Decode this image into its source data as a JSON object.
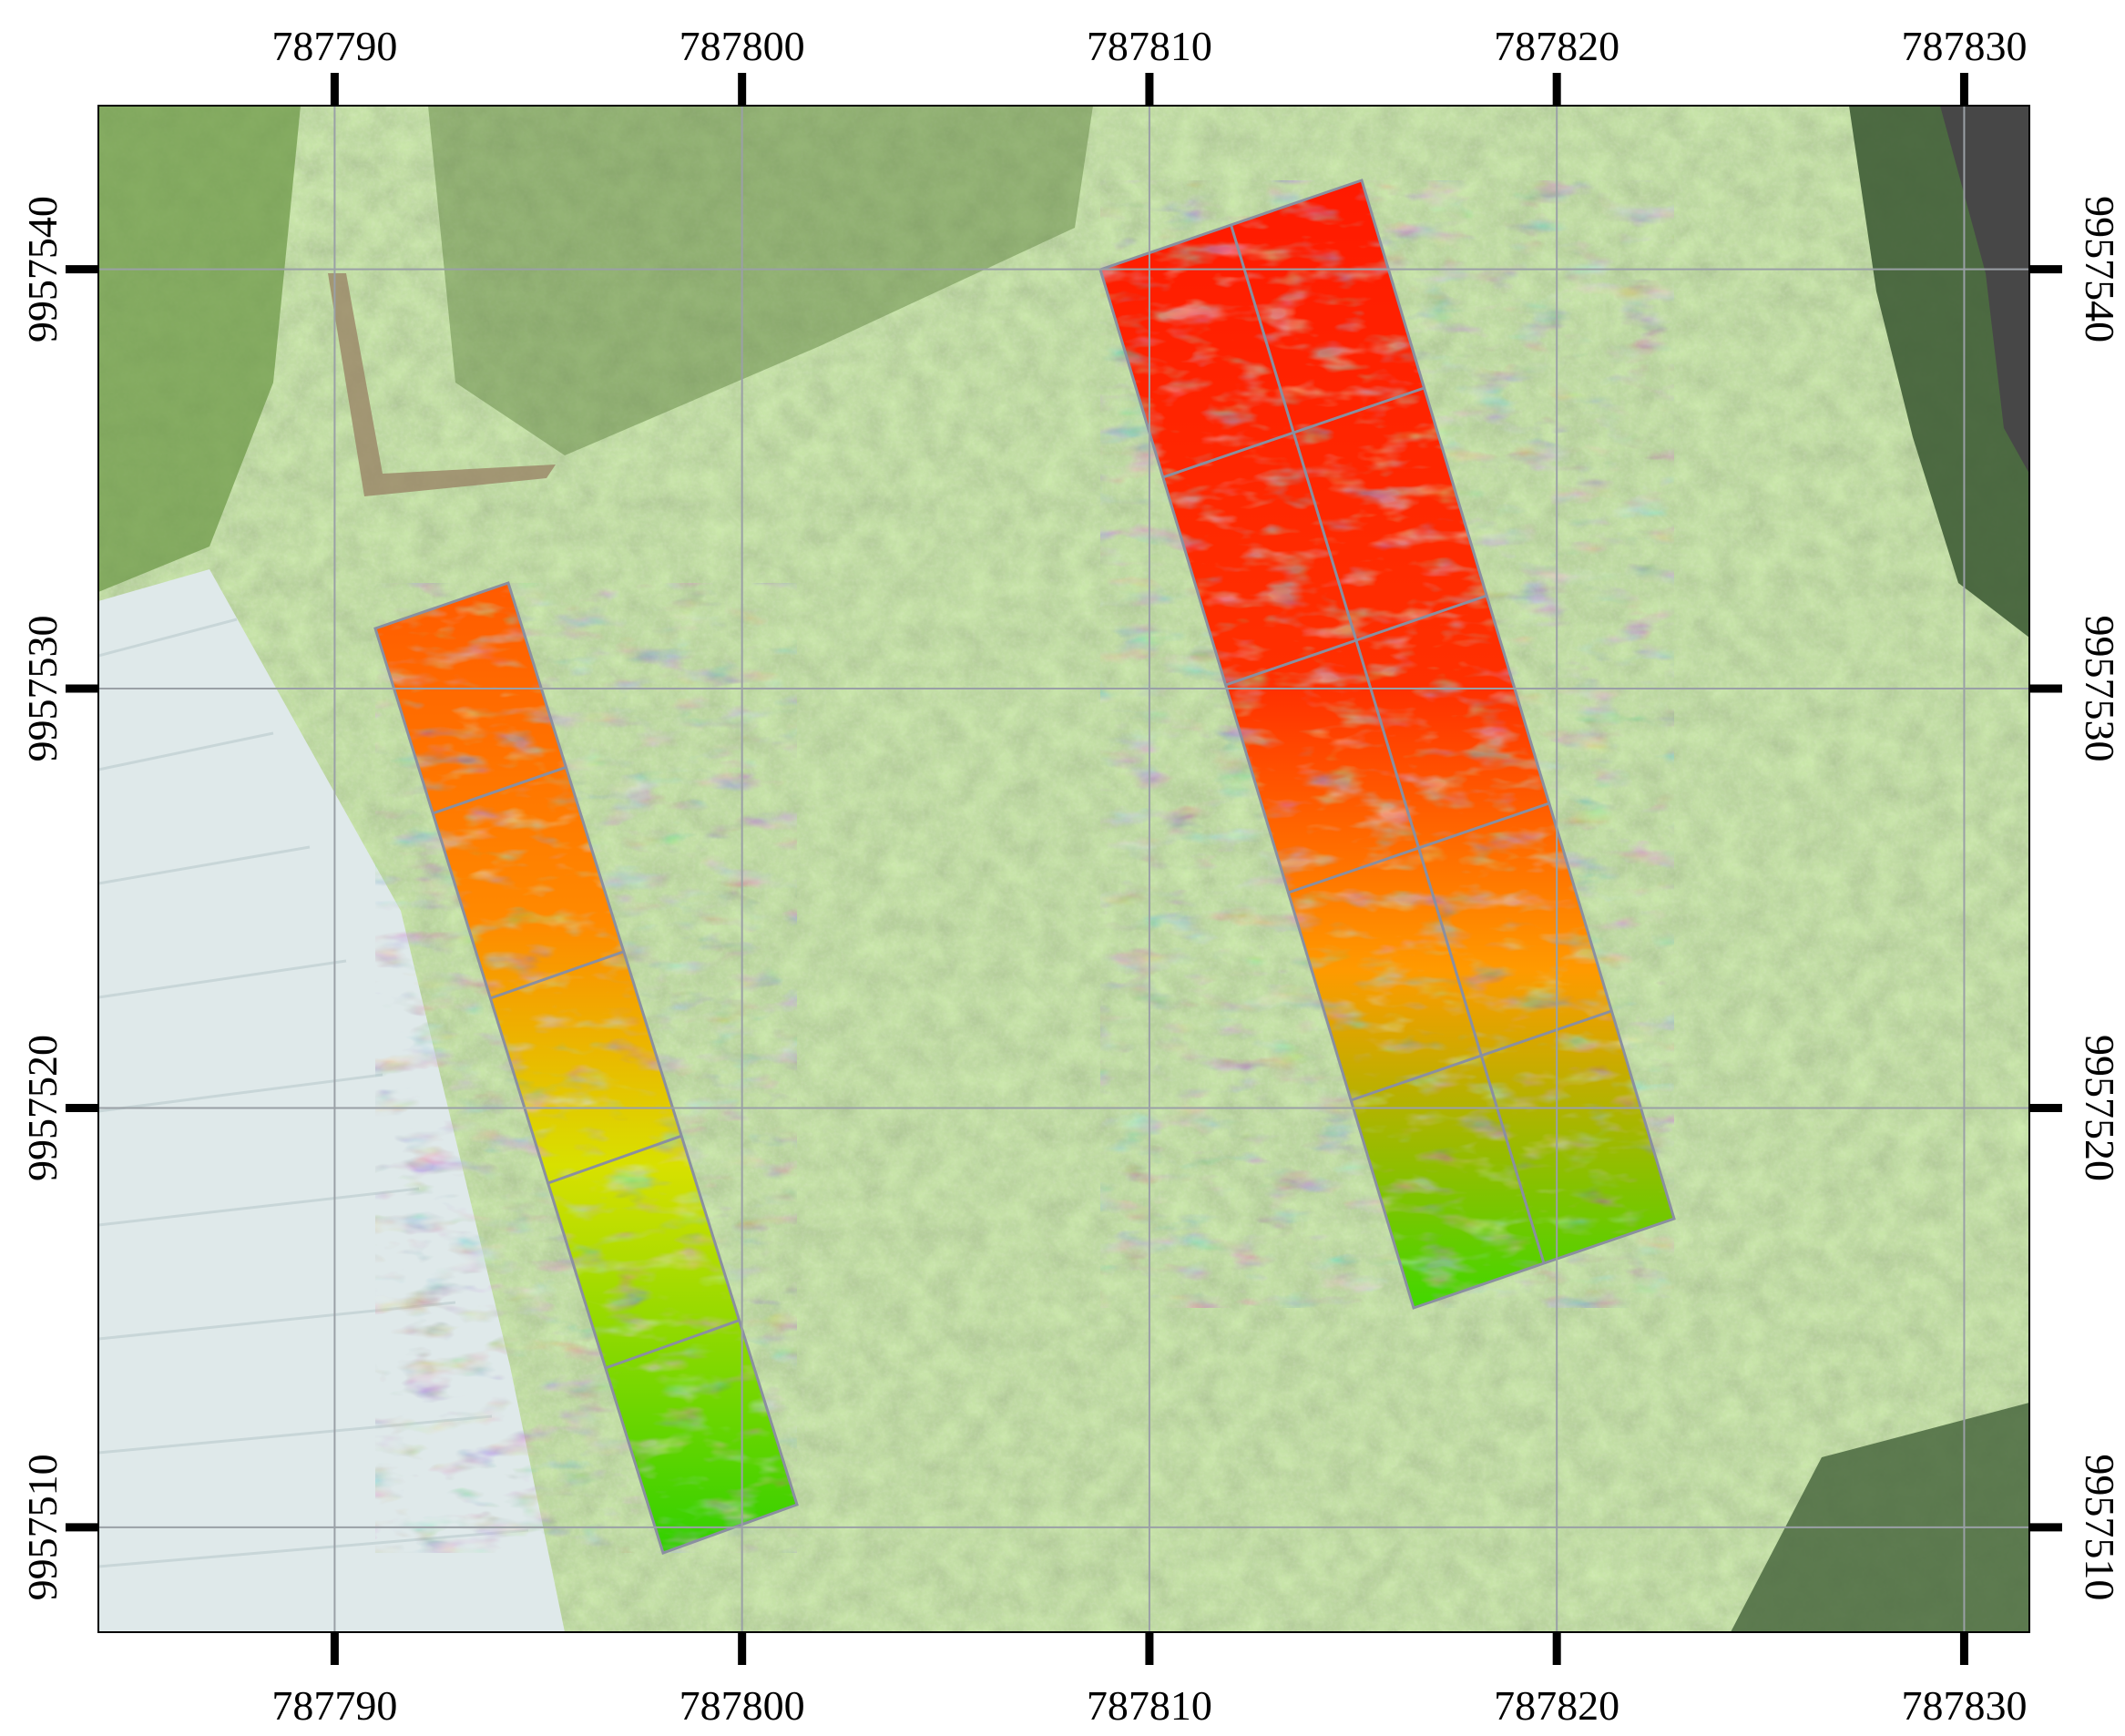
{
  "map": {
    "x_ticks": [
      "787790",
      "787800",
      "787810",
      "787820",
      "787830"
    ],
    "y_ticks": [
      "9957540",
      "9957530",
      "9957520",
      "9957510"
    ],
    "x_range": [
      787784.2,
      787831.6
    ],
    "y_range": [
      9957507.5,
      9957543.9
    ],
    "grid": true,
    "basemap": "aerial-orthophoto-grassland",
    "overlay_colors": {
      "low": "#00e000",
      "mid": "#f0e000",
      "high": "#ff0000"
    },
    "frame_color": "#000000",
    "grid_color": "#9aa0a6"
  }
}
